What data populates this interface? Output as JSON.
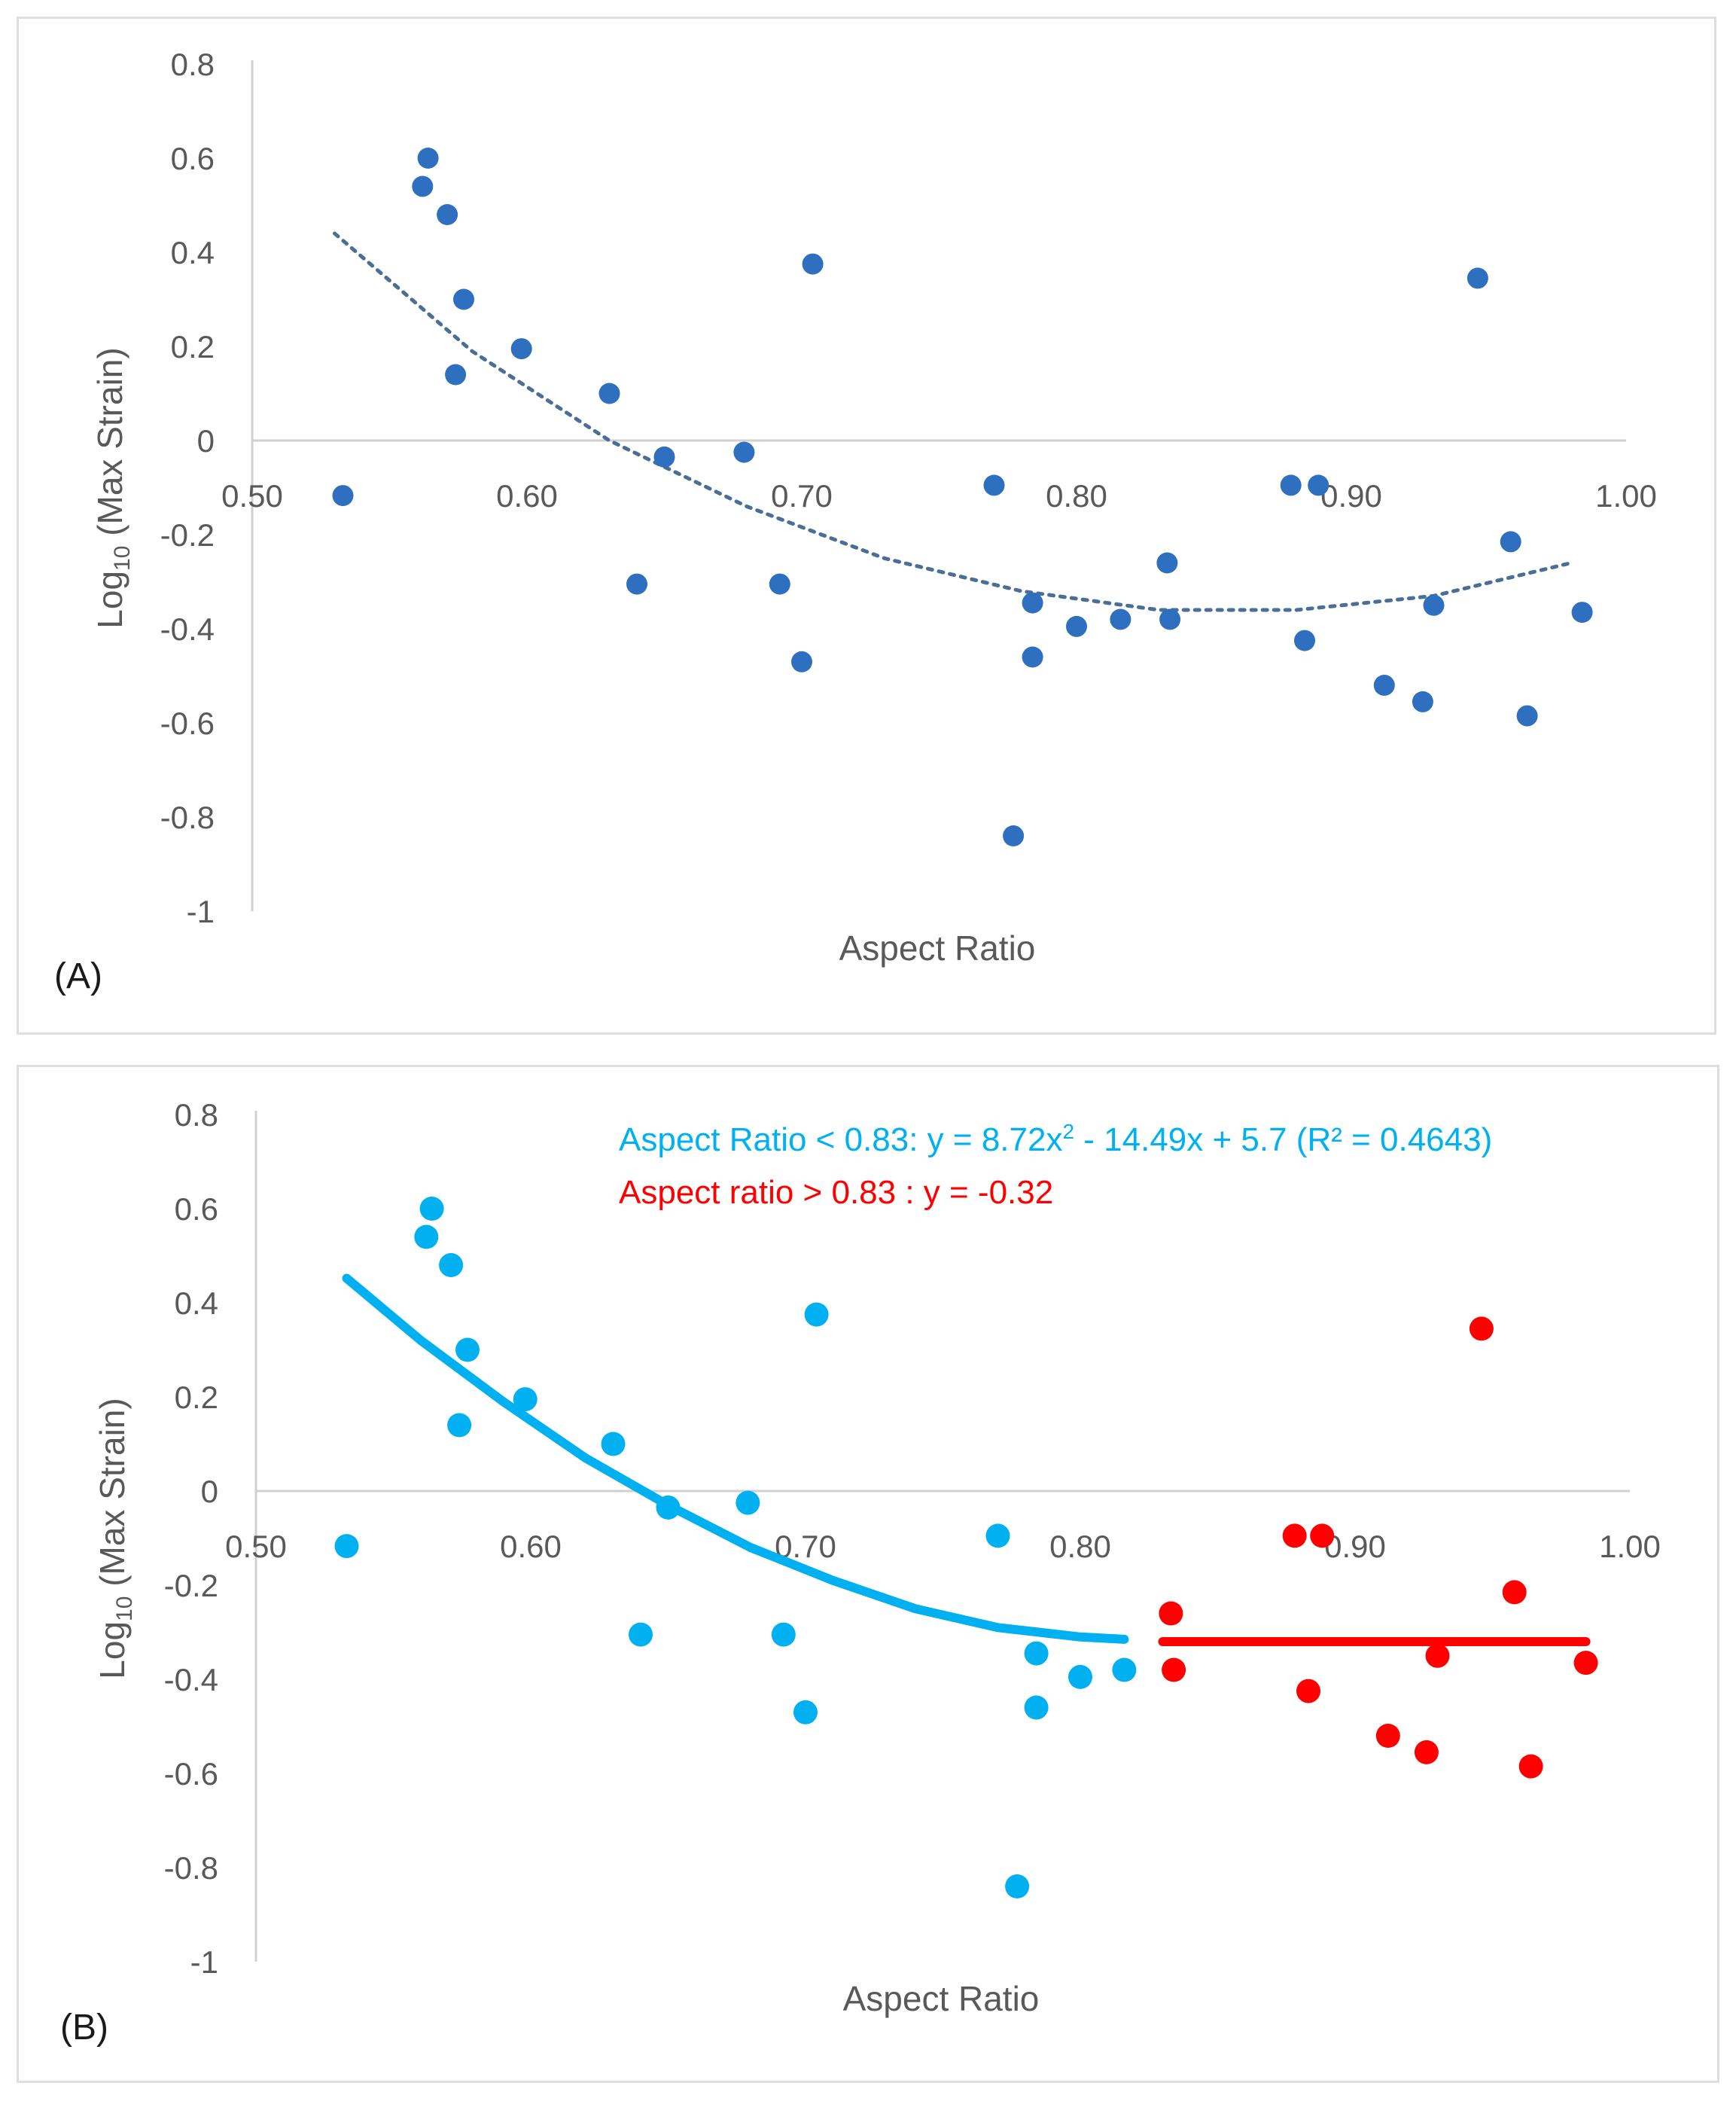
{
  "colors": {
    "panelA_points": "#2f6fbf",
    "panelA_trend": "#4a6f96",
    "below_group": "#00b0f0",
    "above_group": "#ff0000",
    "axis": "#d0d0d0",
    "text": "#595959"
  },
  "chart_data": [
    {
      "type": "scatter",
      "panel_label": "(A)",
      "xlabel": "Aspect Ratio",
      "ylabel_main": "Log",
      "ylabel_sub": "10",
      "ylabel_rest": " (Max Strain)",
      "xlim": [
        0.5,
        1.0
      ],
      "ylim": [
        -1,
        0.8
      ],
      "xticks": [
        0.5,
        0.6,
        0.7,
        0.8,
        0.9,
        1.0
      ],
      "xtick_labels": [
        "0.50",
        "0.60",
        "0.70",
        "0.80",
        "0.90",
        "1.00"
      ],
      "yticks": [
        0.8,
        0.6,
        0.4,
        0.2,
        0,
        -0.2,
        -0.4,
        -0.6,
        -0.8,
        -1
      ],
      "ytick_labels": [
        "0.8",
        "0.6",
        "0.4",
        "0.2",
        "0",
        "-0.2",
        "-0.4",
        "-0.6",
        "-0.8",
        "-1"
      ],
      "series": [
        {
          "name": "data",
          "points": [
            [
              0.533,
              -0.117
            ],
            [
              0.562,
              0.54
            ],
            [
              0.564,
              0.6
            ],
            [
              0.571,
              0.48
            ],
            [
              0.574,
              0.14
            ],
            [
              0.577,
              0.3
            ],
            [
              0.598,
              0.195
            ],
            [
              0.63,
              0.1
            ],
            [
              0.64,
              -0.305
            ],
            [
              0.65,
              -0.035
            ],
            [
              0.679,
              -0.025
            ],
            [
              0.692,
              -0.305
            ],
            [
              0.7,
              -0.47
            ],
            [
              0.704,
              0.375
            ],
            [
              0.77,
              -0.095
            ],
            [
              0.777,
              -0.84
            ],
            [
              0.784,
              -0.345
            ],
            [
              0.784,
              -0.46
            ],
            [
              0.8,
              -0.395
            ],
            [
              0.816,
              -0.38
            ],
            [
              0.833,
              -0.26
            ],
            [
              0.834,
              -0.38
            ],
            [
              0.878,
              -0.095
            ],
            [
              0.883,
              -0.425
            ],
            [
              0.888,
              -0.095
            ],
            [
              0.912,
              -0.52
            ],
            [
              0.926,
              -0.555
            ],
            [
              0.93,
              -0.35
            ],
            [
              0.946,
              0.345
            ],
            [
              0.958,
              -0.215
            ],
            [
              0.964,
              -0.585
            ],
            [
              0.984,
              -0.365
            ]
          ]
        },
        {
          "name": "polynomial trendline (dotted)",
          "type": "line",
          "x": [
            0.53,
            0.58,
            0.63,
            0.68,
            0.73,
            0.78,
            0.83,
            0.88,
            0.93,
            0.98
          ],
          "values": [
            0.44,
            0.19,
            0.0,
            -0.14,
            -0.25,
            -0.32,
            -0.36,
            -0.36,
            -0.33,
            -0.26
          ]
        }
      ]
    },
    {
      "type": "scatter",
      "panel_label": "(B)",
      "xlabel": "Aspect Ratio",
      "ylabel_main": "Log",
      "ylabel_sub": "10",
      "ylabel_rest": " (Max Strain)",
      "xlim": [
        0.5,
        1.0
      ],
      "ylim": [
        -1,
        0.8
      ],
      "xticks": [
        0.5,
        0.6,
        0.7,
        0.8,
        0.9,
        1.0
      ],
      "xtick_labels": [
        "0.50",
        "0.60",
        "0.70",
        "0.80",
        "0.90",
        "1.00"
      ],
      "yticks": [
        0.8,
        0.6,
        0.4,
        0.2,
        0,
        -0.2,
        -0.4,
        -0.6,
        -0.8,
        -1
      ],
      "ytick_labels": [
        "0.8",
        "0.6",
        "0.4",
        "0.2",
        "0",
        "-0.2",
        "-0.4",
        "-0.6",
        "-0.8",
        "-1"
      ],
      "annotations": [
        {
          "text_pre": "Aspect Ratio < 0.83: y = 8.72x",
          "sup": "2",
          "text_post": " - 14.49x + 5.7 (R² = 0.4643)",
          "color": "#00b0f0"
        },
        {
          "text_pre": "Aspect ratio > 0.83 : y = -0.32",
          "sup": "",
          "text_post": "",
          "color": "#ff0000"
        }
      ],
      "series": [
        {
          "name": "Aspect Ratio < 0.83",
          "points": [
            [
              0.533,
              -0.117
            ],
            [
              0.562,
              0.54
            ],
            [
              0.564,
              0.6
            ],
            [
              0.571,
              0.48
            ],
            [
              0.574,
              0.14
            ],
            [
              0.577,
              0.3
            ],
            [
              0.598,
              0.195
            ],
            [
              0.63,
              0.1
            ],
            [
              0.64,
              -0.305
            ],
            [
              0.65,
              -0.035
            ],
            [
              0.679,
              -0.025
            ],
            [
              0.692,
              -0.305
            ],
            [
              0.7,
              -0.47
            ],
            [
              0.704,
              0.375
            ],
            [
              0.77,
              -0.095
            ],
            [
              0.777,
              -0.84
            ],
            [
              0.784,
              -0.345
            ],
            [
              0.784,
              -0.46
            ],
            [
              0.8,
              -0.395
            ],
            [
              0.816,
              -0.38
            ]
          ]
        },
        {
          "name": "Aspect ratio > 0.83",
          "points": [
            [
              0.833,
              -0.26
            ],
            [
              0.834,
              -0.38
            ],
            [
              0.878,
              -0.095
            ],
            [
              0.883,
              -0.425
            ],
            [
              0.888,
              -0.095
            ],
            [
              0.912,
              -0.52
            ],
            [
              0.926,
              -0.555
            ],
            [
              0.93,
              -0.35
            ],
            [
              0.946,
              0.345
            ],
            [
              0.958,
              -0.215
            ],
            [
              0.964,
              -0.585
            ],
            [
              0.984,
              -0.365
            ]
          ]
        },
        {
          "name": "fit < 0.83",
          "type": "line",
          "x": [
            0.533,
            0.56,
            0.59,
            0.62,
            0.65,
            0.68,
            0.71,
            0.74,
            0.77,
            0.8,
            0.816
          ],
          "values": [
            0.452,
            0.32,
            0.19,
            0.07,
            -0.03,
            -0.12,
            -0.19,
            -0.25,
            -0.29,
            -0.31,
            -0.315
          ]
        },
        {
          "name": "fit > 0.83",
          "type": "line",
          "x": [
            0.83,
            0.984
          ],
          "values": [
            -0.32,
            -0.32
          ]
        }
      ]
    }
  ]
}
